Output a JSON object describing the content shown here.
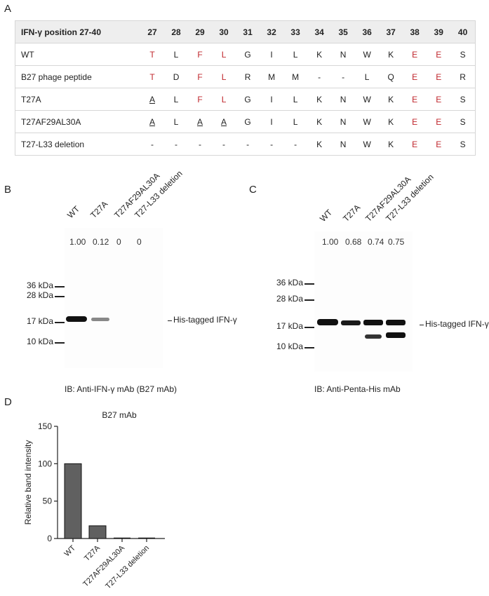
{
  "panels": {
    "a": "A",
    "b": "B",
    "c": "C",
    "d": "D"
  },
  "table": {
    "header": [
      "IFN-γ position 27-40",
      "27",
      "28",
      "29",
      "30",
      "31",
      "32",
      "33",
      "34",
      "35",
      "36",
      "37",
      "38",
      "39",
      "40"
    ],
    "rows": [
      [
        "WT",
        "T",
        "L",
        "F",
        "L",
        "G",
        "I",
        "L",
        "K",
        "N",
        "W",
        "K",
        "E",
        "E",
        "S"
      ],
      [
        "B27 phage peptide",
        "T",
        "D",
        "F",
        "L",
        "R",
        "M",
        "M",
        "-",
        "-",
        "L",
        "Q",
        "E",
        "E",
        "R"
      ],
      [
        "T27A",
        "A",
        "L",
        "F",
        "L",
        "G",
        "I",
        "L",
        "K",
        "N",
        "W",
        "K",
        "E",
        "E",
        "S"
      ],
      [
        "T27AF29AL30A",
        "A",
        "L",
        "A",
        "A",
        "G",
        "I",
        "L",
        "K",
        "N",
        "W",
        "K",
        "E",
        "E",
        "S"
      ],
      [
        "T27-L33 deletion",
        "-",
        "-",
        "-",
        "-",
        "-",
        "-",
        "-",
        "K",
        "N",
        "W",
        "K",
        "E",
        "E",
        "S"
      ]
    ],
    "red_color": "#c0272d"
  },
  "blot_b": {
    "lanes": [
      "WT",
      "T27A",
      "T27AF29AL30A",
      "T27-L33 deletion"
    ],
    "quant": [
      "1.00",
      "0.12",
      "0",
      "0"
    ],
    "markers": [
      "36 kDa",
      "28 kDa",
      "17 kDa",
      "10 kDa"
    ],
    "band_label": "His-tagged IFN-γ",
    "ib_label": "IB: Anti-IFN-γ mAb (B27 mAb)"
  },
  "blot_c": {
    "lanes": [
      "WT",
      "T27A",
      "T27AF29AL30A",
      "T27-L33 deletion"
    ],
    "quant": [
      "1.00",
      "0.68",
      "0.74",
      "0.75"
    ],
    "markers": [
      "36 kDa",
      "28 kDa",
      "17 kDa",
      "10 kDa"
    ],
    "band_label": "His-tagged IFN-γ",
    "ib_label": "IB: Anti-Penta-His mAb"
  },
  "chart_data": {
    "type": "bar",
    "title": "B27 mAb",
    "ylabel": "Relative band intensity",
    "xlabel": "",
    "categories": [
      "WT",
      "T27A",
      "T27AF29AL30A",
      "T27-L33 deletion"
    ],
    "values": [
      100,
      17,
      0,
      0
    ],
    "ylim": [
      0,
      150
    ],
    "yticks": [
      0,
      50,
      100,
      150
    ],
    "bar_color": "#606060"
  }
}
